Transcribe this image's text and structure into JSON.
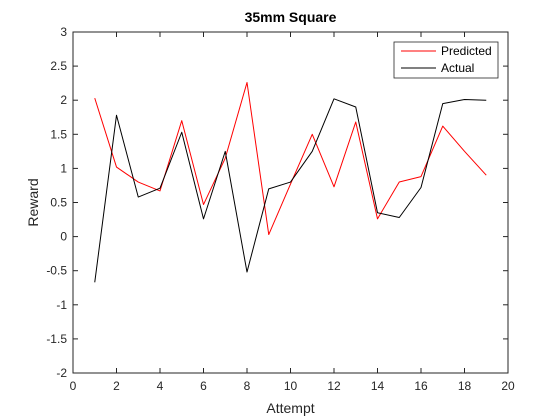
{
  "chart_data": {
    "type": "line",
    "title": "35mm Square",
    "xlabel": "Attempt",
    "ylabel": "Reward",
    "xlim": [
      0,
      20
    ],
    "ylim": [
      -2,
      3
    ],
    "xticks": [
      0,
      2,
      4,
      6,
      8,
      10,
      12,
      14,
      16,
      18,
      20
    ],
    "yticks": [
      -2,
      -1.5,
      -1,
      -0.5,
      0,
      0.5,
      1,
      1.5,
      2,
      2.5,
      3
    ],
    "xtick_labels": [
      "0",
      "2",
      "4",
      "6",
      "8",
      "10",
      "12",
      "14",
      "16",
      "18",
      "20"
    ],
    "ytick_labels": [
      "-2",
      "-1.5",
      "-1",
      "-0.5",
      "0",
      "0.5",
      "1",
      "1.5",
      "2",
      "2.5",
      "3"
    ],
    "grid": false,
    "legend_position": "top-right",
    "x": [
      1,
      2,
      3,
      4,
      5,
      6,
      7,
      8,
      9,
      10,
      11,
      12,
      13,
      14,
      15,
      16,
      17,
      18,
      19
    ],
    "series": [
      {
        "name": "Predicted",
        "color": "#ff0000",
        "values": [
          2.03,
          1.02,
          0.8,
          0.67,
          1.7,
          0.47,
          1.15,
          2.26,
          0.03,
          0.77,
          1.5,
          0.73,
          1.68,
          0.26,
          0.8,
          0.88,
          1.62,
          1.25,
          0.9
        ]
      },
      {
        "name": "Actual",
        "color": "#000000",
        "values": [
          -0.67,
          1.78,
          0.58,
          0.71,
          1.53,
          0.26,
          1.25,
          -0.52,
          0.7,
          0.8,
          1.25,
          2.02,
          1.9,
          0.35,
          0.28,
          0.72,
          1.95,
          2.01,
          2.0
        ]
      }
    ]
  }
}
